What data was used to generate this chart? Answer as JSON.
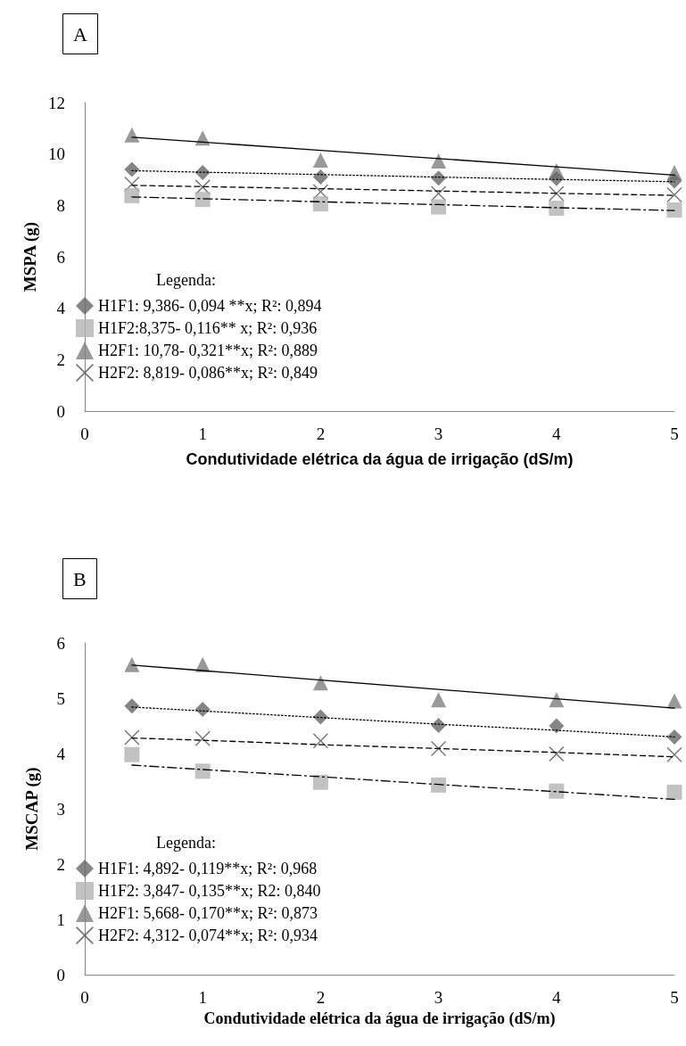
{
  "chart_data": [
    {
      "type": "scatter",
      "title": "A",
      "xlabel": "Condutividade elétrica da água de irrigação (dS/m)",
      "ylabel": "MSPA (g)",
      "legend_title": "Legenda:",
      "legend": "bottom left",
      "grid": false,
      "x": [
        0.4,
        1,
        2,
        3,
        4,
        5
      ],
      "xlim": [
        0,
        5
      ],
      "xticks": [
        0,
        1,
        2,
        3,
        4,
        5
      ],
      "ylim": [
        0,
        12
      ],
      "yticks": [
        0,
        2,
        4,
        6,
        8,
        10,
        12
      ],
      "series": [
        {
          "name": "H1F1: 9,386- 0,094 **x; R²: 0,894",
          "color": "#666666",
          "marker": "diamond",
          "values": [
            9.4,
            9.28,
            9.1,
            9.06,
            9.04,
            8.95
          ]
        },
        {
          "name": "H1F2:8,375- 0,116** x; R²: 0,936",
          "color": "#b3b3b3",
          "marker": "square",
          "values": [
            8.38,
            8.23,
            8.06,
            7.94,
            7.89,
            7.82
          ]
        },
        {
          "name": "H2F1: 10,78- 0,321**x; R²: 0,889",
          "color": "#808080",
          "marker": "triangle",
          "values": [
            10.74,
            10.62,
            9.76,
            9.73,
            9.35,
            9.28
          ]
        },
        {
          "name": "H2F2: 8,819- 0,086**x; R²: 0,849",
          "color": "#555555",
          "marker": "cross",
          "values": [
            8.83,
            8.71,
            8.53,
            8.46,
            8.46,
            8.41
          ]
        },
        {
          "type": "line",
          "color": "#000000",
          "line_style": "dotted",
          "values": [
            9.35,
            9.29,
            9.2,
            9.1,
            9.01,
            8.92
          ]
        },
        {
          "type": "line",
          "color": "#000000",
          "line_style": "dashdot",
          "values": [
            8.33,
            8.26,
            8.14,
            8.03,
            7.91,
            7.8
          ]
        },
        {
          "type": "line",
          "color": "#000000",
          "line_style": "solid",
          "values": [
            10.65,
            10.46,
            10.14,
            9.82,
            9.5,
            9.18
          ]
        },
        {
          "type": "line",
          "color": "#000000",
          "line_style": "dashed",
          "values": [
            8.78,
            8.73,
            8.65,
            8.56,
            8.47,
            8.39
          ]
        }
      ]
    },
    {
      "type": "scatter",
      "title": "B",
      "xlabel": "Condutividade elétrica da água de irrigação (dS/m)",
      "ylabel": "MSCAP (g)",
      "legend_title": "Legenda:",
      "legend": "bottom left",
      "grid": false,
      "x": [
        0.4,
        1,
        2,
        3,
        4,
        5
      ],
      "xlim": [
        0,
        5
      ],
      "xticks": [
        0,
        1,
        2,
        3,
        4,
        5
      ],
      "ylim": [
        0,
        6
      ],
      "yticks": [
        0,
        1,
        2,
        3,
        4,
        5,
        6
      ],
      "series": [
        {
          "name": "H1F1: 4,892- 0,119**x; R²: 0,968",
          "color": "#666666",
          "marker": "diamond",
          "values": [
            4.86,
            4.8,
            4.66,
            4.51,
            4.5,
            4.3
          ]
        },
        {
          "name": "H1F2: 3,847- 0,135**x; R2: 0,840",
          "color": "#b3b3b3",
          "marker": "square",
          "values": [
            3.98,
            3.68,
            3.48,
            3.43,
            3.32,
            3.3
          ]
        },
        {
          "name": "H2F1: 5,668- 0,170**x; R²: 0,873",
          "color": "#808080",
          "marker": "triangle",
          "values": [
            5.61,
            5.61,
            5.28,
            4.97,
            4.97,
            4.95
          ]
        },
        {
          "name": "H2F2: 4,312- 0,074**x; R²: 0,934",
          "color": "#555555",
          "marker": "cross",
          "values": [
            4.29,
            4.27,
            4.23,
            4.09,
            3.99,
            3.98
          ]
        },
        {
          "type": "line",
          "color": "#000000",
          "line_style": "dotted",
          "values": [
            4.84,
            4.77,
            4.65,
            4.53,
            4.42,
            4.3
          ]
        },
        {
          "type": "line",
          "color": "#000000",
          "line_style": "dashdot",
          "values": [
            3.79,
            3.71,
            3.58,
            3.44,
            3.31,
            3.17
          ]
        },
        {
          "type": "line",
          "color": "#000000",
          "line_style": "solid",
          "values": [
            5.6,
            5.5,
            5.33,
            5.16,
            4.99,
            4.82
          ]
        },
        {
          "type": "line",
          "color": "#000000",
          "line_style": "dashed",
          "values": [
            4.28,
            4.24,
            4.16,
            4.09,
            4.02,
            3.94
          ]
        }
      ]
    }
  ]
}
